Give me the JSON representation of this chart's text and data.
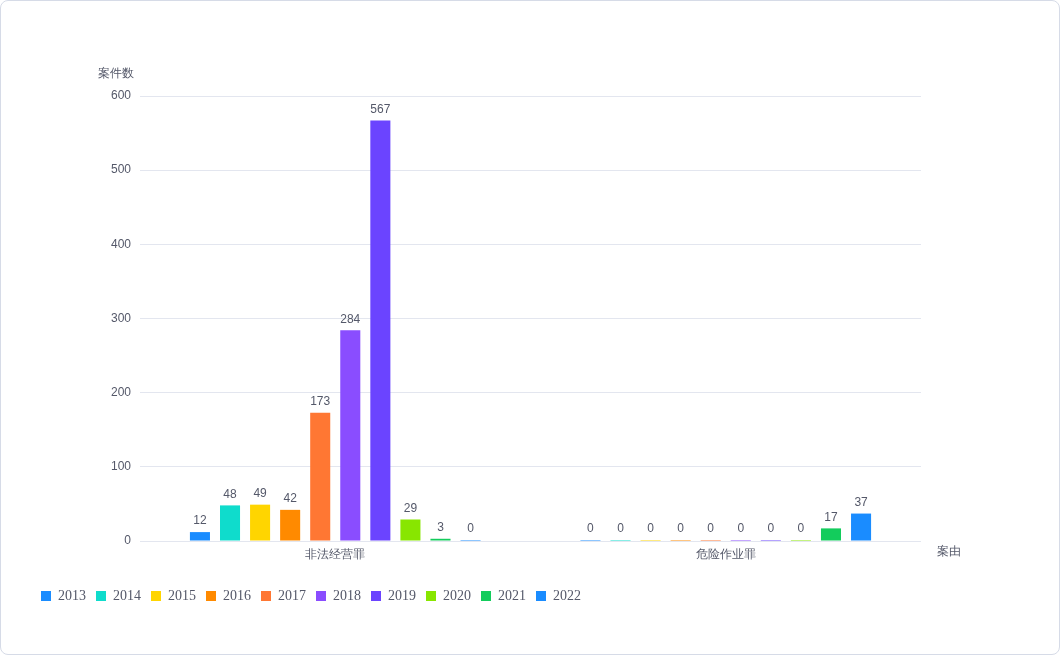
{
  "chart_data": {
    "type": "bar",
    "xlabel": "案由",
    "ylabel": "案件数",
    "categories": [
      "非法经营罪",
      "危险作业罪"
    ],
    "series": [
      {
        "name": "2013",
        "color": "#1a8cff",
        "values": [
          12,
          0
        ]
      },
      {
        "name": "2014",
        "color": "#0fdccc",
        "values": [
          48,
          0
        ]
      },
      {
        "name": "2015",
        "color": "#ffd500",
        "values": [
          49,
          0
        ]
      },
      {
        "name": "2016",
        "color": "#ff8a00",
        "values": [
          42,
          0
        ]
      },
      {
        "name": "2017",
        "color": "#ff7733",
        "values": [
          173,
          0
        ]
      },
      {
        "name": "2018",
        "color": "#8a4dff",
        "values": [
          284,
          0
        ]
      },
      {
        "name": "2019",
        "color": "#6b44ff",
        "values": [
          567,
          0
        ]
      },
      {
        "name": "2020",
        "color": "#88e600",
        "values": [
          29,
          0
        ]
      },
      {
        "name": "2021",
        "color": "#13cc5c",
        "values": [
          3,
          17
        ]
      },
      {
        "name": "2022",
        "color": "#1a8cff",
        "values": [
          0,
          37
        ]
      }
    ],
    "ylim": [
      0,
      600
    ],
    "yticks": [
      0,
      100,
      200,
      300,
      400,
      500,
      600
    ],
    "grid": "y",
    "legend": "bottom left",
    "data_labels": true
  }
}
